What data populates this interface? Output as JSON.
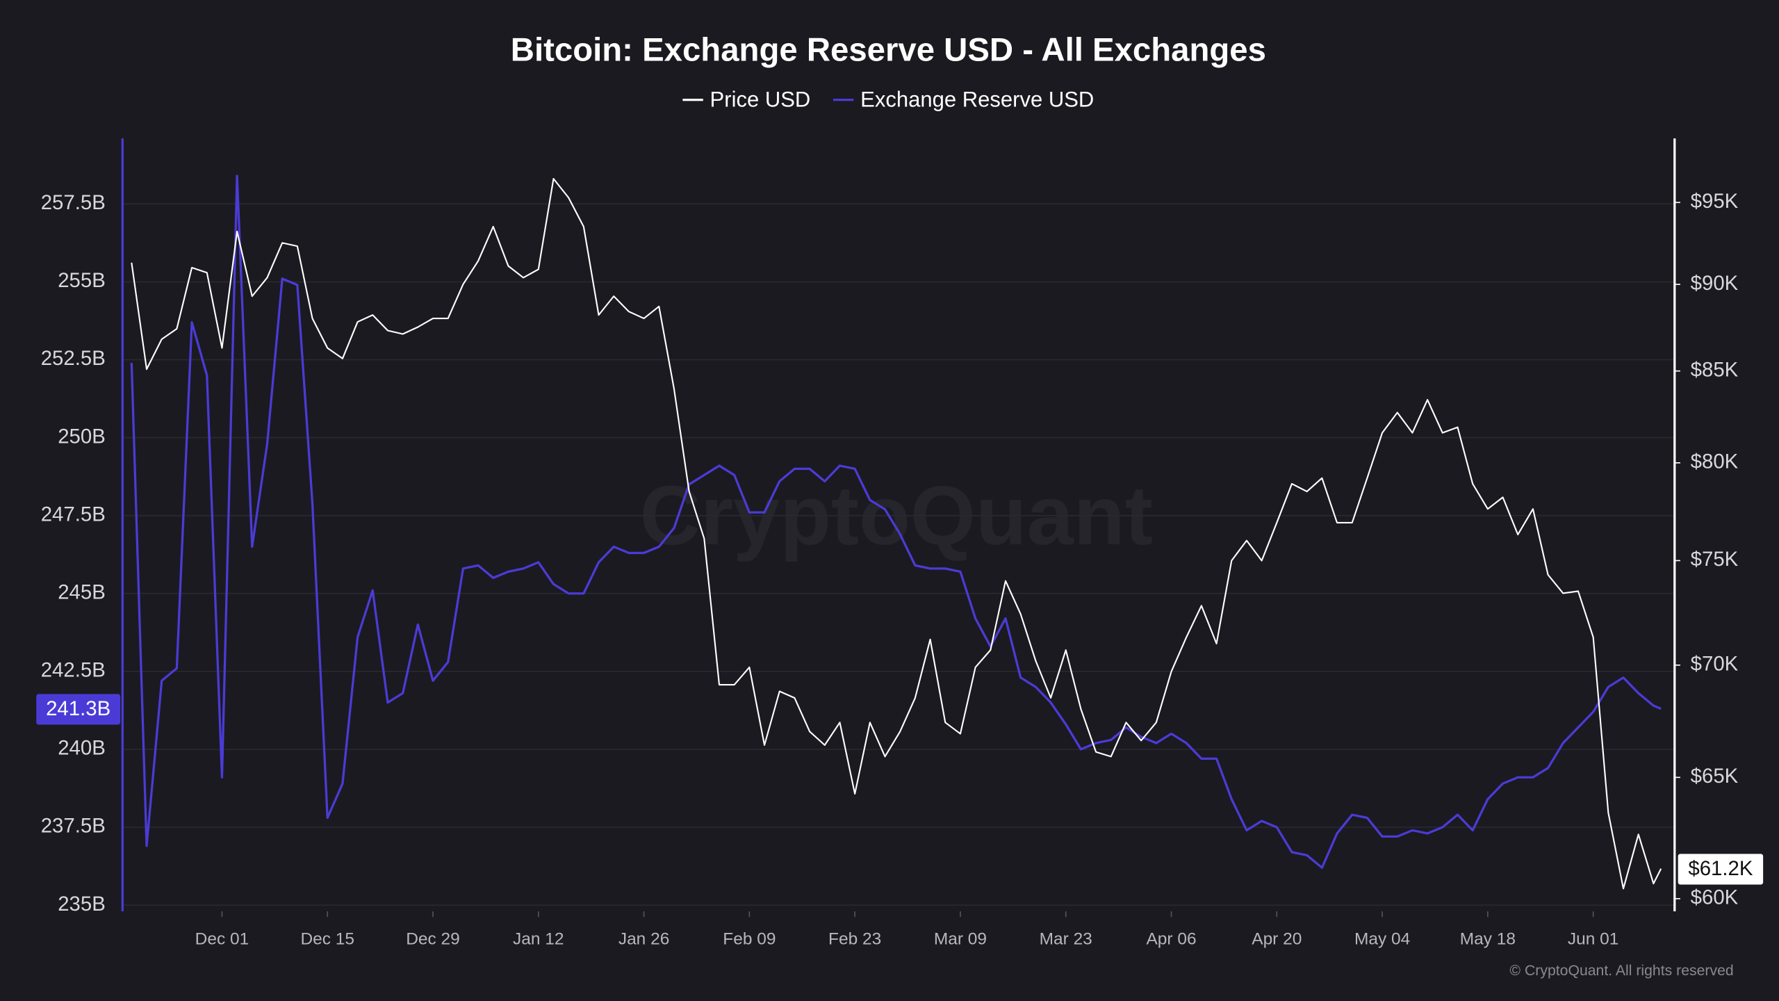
{
  "chart_data": {
    "type": "line",
    "title": "Bitcoin: Exchange Reserve USD - All Exchanges",
    "watermark": "CryptoQuant",
    "copyright": "© CryptoQuant. All rights reserved",
    "legend": "top",
    "grid": true,
    "x": [
      -12,
      -10,
      -8,
      -6,
      -4,
      -2,
      0,
      2,
      4,
      6,
      8,
      10,
      12,
      14,
      16,
      18,
      20,
      22,
      24,
      26,
      28,
      30,
      32,
      34,
      36,
      38,
      40,
      42,
      44,
      46,
      48,
      50,
      52,
      54,
      56,
      58,
      60,
      62,
      64,
      66,
      68,
      70,
      72,
      74,
      76,
      78,
      80,
      82,
      84,
      86,
      88,
      90,
      92,
      94,
      96,
      98,
      100,
      102,
      104,
      106,
      108,
      110,
      112,
      114,
      116,
      118,
      120,
      122,
      124,
      126,
      128,
      130,
      132,
      134,
      136,
      138,
      140,
      142,
      144,
      146,
      148,
      150,
      152,
      154,
      156,
      158,
      160,
      162,
      164,
      166,
      168,
      170,
      172,
      174,
      176,
      178,
      180,
      182,
      184,
      186,
      188,
      190,
      191
    ],
    "xlim": [
      -13.2,
      191.9
    ],
    "xticks": [
      {
        "value": 0,
        "label": "Dec 01"
      },
      {
        "value": 14,
        "label": "Dec 15"
      },
      {
        "value": 28,
        "label": "Dec 29"
      },
      {
        "value": 42,
        "label": "Jan 12"
      },
      {
        "value": 56,
        "label": "Jan 26"
      },
      {
        "value": 70,
        "label": "Feb 09"
      },
      {
        "value": 84,
        "label": "Feb 23"
      },
      {
        "value": 98,
        "label": "Mar 09"
      },
      {
        "value": 112,
        "label": "Mar 23"
      },
      {
        "value": 126,
        "label": "Apr 06"
      },
      {
        "value": 140,
        "label": "Apr 20"
      },
      {
        "value": 154,
        "label": "May 04"
      },
      {
        "value": 168,
        "label": "May 18"
      },
      {
        "value": 182,
        "label": "Jun 01"
      }
    ],
    "ylim": [
      234.8,
      259.6
    ],
    "yticks": [
      {
        "value": 235,
        "label": "235B"
      },
      {
        "value": 237.5,
        "label": "237.5B"
      },
      {
        "value": 240,
        "label": "240B"
      },
      {
        "value": 242.5,
        "label": "242.5B"
      },
      {
        "value": 245,
        "label": "245B"
      },
      {
        "value": 247.5,
        "label": "247.5B"
      },
      {
        "value": 250,
        "label": "250B"
      },
      {
        "value": 252.5,
        "label": "252.5B"
      },
      {
        "value": 255,
        "label": "255B"
      },
      {
        "value": 257.5,
        "label": "257.5B"
      }
    ],
    "y2lim": [
      59.5,
      99.1
    ],
    "y2_scale": "log",
    "y2ticks": [
      {
        "value": 60,
        "label": "$60K"
      },
      {
        "value": 65,
        "label": "$65K"
      },
      {
        "value": 70,
        "label": "$70K"
      },
      {
        "value": 75,
        "label": "$75K"
      },
      {
        "value": 80,
        "label": "$80K"
      },
      {
        "value": 85,
        "label": "$85K"
      },
      {
        "value": 90,
        "label": "$90K"
      },
      {
        "value": 95,
        "label": "$95K"
      }
    ],
    "series": [
      {
        "name": "Price USD",
        "color": "#ffffff",
        "axis": "y2",
        "values": [
          91.3,
          85.1,
          86.8,
          87.4,
          91.0,
          90.7,
          86.3,
          93.2,
          89.3,
          90.4,
          92.5,
          92.3,
          88.0,
          86.3,
          85.7,
          87.8,
          88.2,
          87.3,
          87.1,
          87.5,
          88.0,
          88.0,
          90.0,
          91.4,
          93.5,
          91.1,
          90.4,
          90.9,
          96.5,
          95.3,
          93.5,
          88.2,
          89.3,
          88.4,
          88.0,
          88.7,
          84.0,
          78.5,
          76.1,
          69.1,
          69.1,
          69.9,
          66.4,
          68.8,
          68.5,
          67.0,
          66.4,
          67.4,
          64.3,
          67.4,
          65.9,
          67.0,
          68.5,
          71.2,
          67.4,
          66.9,
          69.9,
          70.7,
          74.0,
          72.4,
          70.2,
          68.5,
          70.7,
          68.0,
          66.1,
          65.9,
          67.4,
          66.6,
          67.4,
          69.7,
          71.3,
          72.8,
          71.0,
          75.0,
          76.0,
          75.0,
          76.9,
          78.9,
          78.5,
          79.2,
          76.9,
          76.9,
          79.2,
          81.6,
          82.7,
          81.6,
          83.4,
          81.6,
          81.9,
          78.9,
          77.6,
          78.2,
          76.3,
          77.6,
          74.3,
          73.4,
          73.5,
          71.3,
          63.5,
          60.4,
          62.6,
          60.6,
          61.2
        ],
        "value_labels": [
          null,
          null,
          null,
          null,
          null,
          null,
          null,
          null,
          null,
          null,
          null,
          null,
          null,
          null,
          null,
          null,
          null,
          null,
          null,
          null,
          null,
          null,
          null,
          null,
          null,
          null,
          null,
          null,
          null,
          null,
          null,
          null,
          null,
          null,
          null,
          null,
          null,
          null,
          null,
          null,
          null,
          null,
          null,
          null,
          null,
          null,
          null,
          null,
          null,
          null,
          null,
          null,
          null,
          null,
          null,
          null,
          null,
          null,
          null,
          null,
          null,
          null,
          null,
          null,
          null,
          null,
          null,
          null,
          null,
          null,
          null,
          null,
          null,
          null,
          null,
          null,
          null,
          null,
          null,
          null,
          null,
          null,
          null,
          null,
          null,
          null,
          null,
          null,
          null,
          null,
          null,
          null,
          null,
          null,
          null,
          null,
          null,
          null,
          null,
          null,
          null,
          null,
          "$61.2K"
        ]
      },
      {
        "name": "Exchange Reserve USD",
        "color": "#4b3bd6",
        "values": [
          252.4,
          236.9,
          242.2,
          242.6,
          253.7,
          252.0,
          239.1,
          258.4,
          246.5,
          249.8,
          255.1,
          254.9,
          247.9,
          237.8,
          238.9,
          243.6,
          245.1,
          241.5,
          241.8,
          244.0,
          242.2,
          242.8,
          245.8,
          245.9,
          245.5,
          245.7,
          245.8,
          246.0,
          245.3,
          245.0,
          245.0,
          246.0,
          246.5,
          246.3,
          246.3,
          246.5,
          247.1,
          248.5,
          248.8,
          249.1,
          248.8,
          247.6,
          247.6,
          248.6,
          249.0,
          249.0,
          248.6,
          249.1,
          249.0,
          248.0,
          247.7,
          246.9,
          245.9,
          245.8,
          245.8,
          245.7,
          244.2,
          243.3,
          244.2,
          242.3,
          242.0,
          241.5,
          240.8,
          240.0,
          240.2,
          240.3,
          240.7,
          240.4,
          240.2,
          240.5,
          240.2,
          239.7,
          239.7,
          238.4,
          237.4,
          237.7,
          237.5,
          236.7,
          236.6,
          236.2,
          237.3,
          237.9,
          237.8,
          237.2,
          237.2,
          237.4,
          237.3,
          237.5,
          237.9,
          237.4,
          238.4,
          238.9,
          239.1,
          239.1,
          239.4,
          240.2,
          240.7,
          241.2,
          242.0,
          242.3,
          241.8,
          241.4,
          241.3
        ],
        "value_labels": [
          null,
          null,
          null,
          null,
          null,
          null,
          null,
          null,
          null,
          null,
          null,
          null,
          null,
          null,
          null,
          null,
          null,
          null,
          null,
          null,
          null,
          null,
          null,
          null,
          null,
          null,
          null,
          null,
          null,
          null,
          null,
          null,
          null,
          null,
          null,
          null,
          null,
          null,
          null,
          null,
          null,
          null,
          null,
          null,
          null,
          null,
          null,
          null,
          null,
          null,
          null,
          null,
          null,
          null,
          null,
          null,
          null,
          null,
          null,
          null,
          null,
          null,
          null,
          null,
          null,
          null,
          null,
          null,
          null,
          null,
          null,
          null,
          null,
          null,
          null,
          null,
          null,
          null,
          null,
          null,
          null,
          null,
          null,
          null,
          null,
          null,
          null,
          null,
          null,
          null,
          null,
          null,
          null,
          null,
          null,
          null,
          null,
          null,
          null,
          null,
          null,
          null,
          "241.3B"
        ]
      }
    ]
  }
}
